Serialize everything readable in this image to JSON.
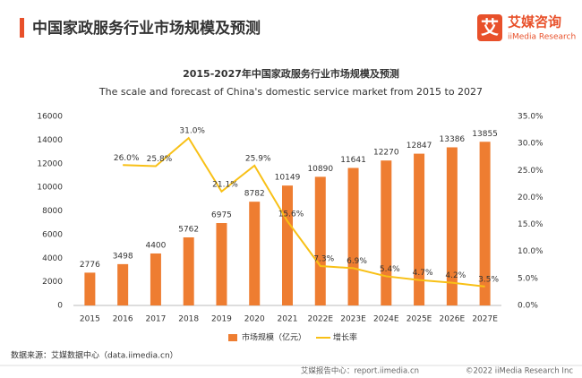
{
  "header": {
    "title": "中国家政服务行业市场规模及预测",
    "logo_mark": "艾",
    "logo_text": "艾媒咨询",
    "logo_subtext": "iiMedia Research"
  },
  "chart_data": {
    "type": "bar",
    "title": "2015-2027年中国家政服务行业市场规模及预测",
    "subtitle": "The scale and forecast of China's domestic service market from 2015 to 2027",
    "categories": [
      "2015",
      "2016",
      "2017",
      "2018",
      "2019",
      "2020",
      "2021",
      "2022E",
      "2023E",
      "2024E",
      "2025E",
      "2026E",
      "2027E"
    ],
    "series": [
      {
        "name": "市场规模（亿元）",
        "type": "bar",
        "color": "#ee7d31",
        "values": [
          2776,
          3498,
          4400,
          5762,
          6975,
          8782,
          10149,
          10890,
          11641,
          12270,
          12847,
          13386,
          13855
        ]
      },
      {
        "name": "增长率",
        "type": "line",
        "axis": "y2",
        "color": "#f8c016",
        "values": [
          null,
          26.0,
          25.8,
          31.0,
          21.1,
          25.9,
          15.6,
          7.3,
          6.9,
          5.4,
          4.7,
          4.2,
          3.5
        ],
        "value_labels": [
          null,
          "26.0%",
          "25.8%",
          "31.0%",
          "21.1%",
          "25.9%",
          "15.6%",
          "7.3%",
          "6.9%",
          "5.4%",
          "4.7%",
          "4.2%",
          "3.5%"
        ]
      }
    ],
    "ylim": [
      0,
      16000
    ],
    "yticks": [
      0,
      2000,
      4000,
      6000,
      8000,
      10000,
      12000,
      14000,
      16000
    ],
    "y2lim": [
      0,
      35
    ],
    "y2ticks": [
      {
        "value": 0,
        "label": "0.0%"
      },
      {
        "value": 5,
        "label": "5.0%"
      },
      {
        "value": 10,
        "label": "10.0%"
      },
      {
        "value": 15,
        "label": "15.0%"
      },
      {
        "value": 20,
        "label": "20.0%"
      },
      {
        "value": 25,
        "label": "25.0%"
      },
      {
        "value": 30,
        "label": "30.0%"
      },
      {
        "value": 35,
        "label": "35.0%"
      }
    ],
    "grid": false,
    "legend": "bottom"
  },
  "source": "数据来源：艾媒数据中心（data.iimedia.cn）",
  "footer": {
    "site": "艾媒报告中心：report.iimedia.cn",
    "copyright": "©2022  iiMedia Research  Inc"
  }
}
